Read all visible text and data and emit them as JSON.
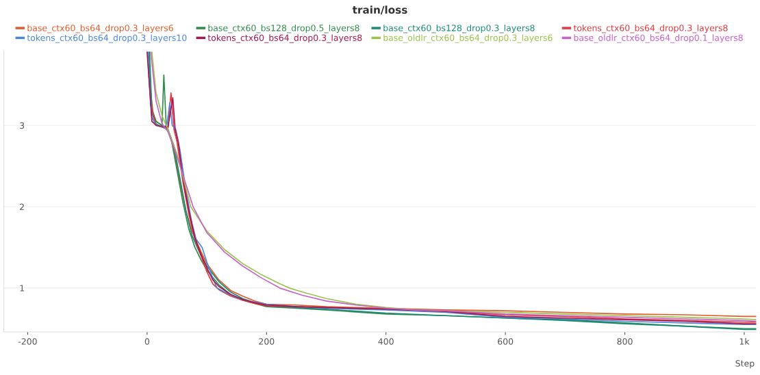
{
  "chart_data": {
    "type": "line",
    "title": "train/loss",
    "xlabel": "Step",
    "xlim": [
      -240,
      1020
    ],
    "xticks": [
      -200,
      0,
      200,
      400,
      600,
      800,
      {
        "value": 1000,
        "label": "1k"
      }
    ],
    "ylim": [
      0.46,
      3.92
    ],
    "yticks": [
      1,
      2,
      3
    ],
    "grid": "y",
    "legend": "top",
    "series": [
      {
        "name": "base_ctx60_bs64_drop0.3_layers6",
        "color": "#df5b28",
        "x": [
          3,
          10,
          15,
          25,
          35,
          45,
          55,
          65,
          75,
          90,
          100,
          120,
          140,
          160,
          180,
          200,
          250,
          300,
          400,
          500,
          600,
          700,
          800,
          900,
          1000,
          1020
        ],
        "values": [
          3.6,
          3.15,
          3.05,
          3.0,
          2.95,
          2.7,
          2.3,
          1.95,
          1.7,
          1.45,
          1.3,
          1.1,
          0.97,
          0.9,
          0.84,
          0.8,
          0.79,
          0.77,
          0.75,
          0.73,
          0.72,
          0.7,
          0.68,
          0.67,
          0.65,
          0.65
        ]
      },
      {
        "name": "base_ctx60_bs128_drop0.5_layers8",
        "color": "#2e8b4a",
        "x": [
          4,
          8,
          15,
          25,
          28,
          32,
          40,
          50,
          60,
          70,
          80,
          90,
          100,
          120,
          140,
          160,
          180,
          200,
          250,
          300,
          400,
          500,
          600,
          700,
          800,
          900,
          1000,
          1020
        ],
        "values": [
          3.9,
          3.2,
          3.05,
          3.0,
          3.62,
          3.0,
          2.85,
          2.45,
          2.05,
          1.72,
          1.5,
          1.35,
          1.22,
          1.04,
          0.92,
          0.85,
          0.81,
          0.77,
          0.75,
          0.73,
          0.68,
          0.66,
          0.63,
          0.61,
          0.57,
          0.53,
          0.5,
          0.5
        ]
      },
      {
        "name": "base_ctx60_bs128_drop0.3_layers8",
        "color": "#1a8a78",
        "x": [
          3,
          8,
          15,
          25,
          35,
          45,
          55,
          65,
          75,
          90,
          100,
          120,
          140,
          160,
          180,
          200,
          250,
          300,
          400,
          500,
          600,
          700,
          800,
          900,
          1000,
          1020
        ],
        "values": [
          3.9,
          3.15,
          3.02,
          2.98,
          2.95,
          2.75,
          2.35,
          1.95,
          1.65,
          1.4,
          1.27,
          1.08,
          0.95,
          0.87,
          0.82,
          0.78,
          0.76,
          0.74,
          0.69,
          0.66,
          0.63,
          0.6,
          0.56,
          0.53,
          0.49,
          0.49
        ]
      },
      {
        "name": "tokens_ctx60_bs64_drop0.3_layers8",
        "color": "#e0383f",
        "x": [
          2,
          6,
          15,
          25,
          35,
          40,
          45,
          50,
          60,
          70,
          80,
          90,
          100,
          110,
          120,
          140,
          160,
          180,
          200,
          250,
          300,
          400,
          500,
          600,
          700,
          800,
          900,
          1000,
          1020
        ],
        "values": [
          3.75,
          3.25,
          3.0,
          2.98,
          2.97,
          3.4,
          2.95,
          2.8,
          2.3,
          1.9,
          1.6,
          1.4,
          1.2,
          1.05,
          0.98,
          0.9,
          0.85,
          0.81,
          0.78,
          0.77,
          0.76,
          0.74,
          0.71,
          0.67,
          0.65,
          0.62,
          0.6,
          0.58,
          0.58
        ]
      },
      {
        "name": "tokens_ctx60_bs64_drop0.3_layers10",
        "color": "#4a86e0",
        "x": [
          1,
          8,
          15,
          25,
          33,
          38,
          42,
          48,
          55,
          65,
          75,
          82,
          86,
          92,
          100,
          110,
          117,
          130,
          150,
          170,
          200,
          250,
          300,
          400,
          500,
          600,
          700,
          800,
          900,
          1000,
          1020
        ],
        "values": [
          3.9,
          3.1,
          3.0,
          2.98,
          3.0,
          3.28,
          3.0,
          2.95,
          2.7,
          2.2,
          1.8,
          1.6,
          1.56,
          1.5,
          1.32,
          1.12,
          1.0,
          0.95,
          0.88,
          0.84,
          0.8,
          0.77,
          0.75,
          0.73,
          0.7,
          0.64,
          0.62,
          0.59,
          0.57,
          0.55,
          0.55
        ]
      },
      {
        "name": "tokens_ctx60_bs64_drop0.3_layers8",
        "color": "#a5164f",
        "x": [
          0,
          8,
          15,
          25,
          35,
          43,
          47,
          52,
          60,
          70,
          80,
          90,
          100,
          110,
          120,
          140,
          160,
          180,
          200,
          250,
          300,
          400,
          500,
          600,
          700,
          800,
          900,
          1000,
          1020
        ],
        "values": [
          3.9,
          3.05,
          3.0,
          2.99,
          2.98,
          3.34,
          2.95,
          2.8,
          2.35,
          1.95,
          1.62,
          1.42,
          1.25,
          1.1,
          1.02,
          0.92,
          0.86,
          0.82,
          0.79,
          0.77,
          0.76,
          0.74,
          0.71,
          0.65,
          0.63,
          0.61,
          0.59,
          0.56,
          0.56
        ]
      },
      {
        "name": "base_oldlr_ctx60_bs64_drop0.3_layers6",
        "color": "#9bc34b",
        "x": [
          8,
          15,
          25,
          35,
          50,
          73,
          100,
          130,
          160,
          190,
          220,
          238,
          260,
          300,
          350,
          400,
          450,
          500,
          600,
          700,
          800,
          900,
          1000,
          1020
        ],
        "values": [
          3.9,
          3.4,
          3.12,
          2.95,
          2.65,
          2.0,
          1.7,
          1.47,
          1.3,
          1.17,
          1.06,
          1.0,
          0.95,
          0.87,
          0.8,
          0.76,
          0.73,
          0.72,
          0.7,
          0.68,
          0.66,
          0.64,
          0.62,
          0.61
        ]
      },
      {
        "name": "base_oldlr_ctx60_bs64_drop0.1_layers8",
        "color": "#c861c8",
        "x": [
          6,
          15,
          25,
          35,
          50,
          77,
          100,
          130,
          160,
          190,
          222,
          260,
          300,
          350,
          400,
          450,
          500,
          600,
          700,
          800,
          900,
          1000,
          1020
        ],
        "values": [
          3.9,
          3.3,
          3.02,
          2.92,
          2.62,
          2.0,
          1.68,
          1.44,
          1.27,
          1.13,
          1.0,
          0.91,
          0.84,
          0.79,
          0.75,
          0.73,
          0.72,
          0.68,
          0.66,
          0.64,
          0.62,
          0.6,
          0.59
        ]
      }
    ]
  }
}
